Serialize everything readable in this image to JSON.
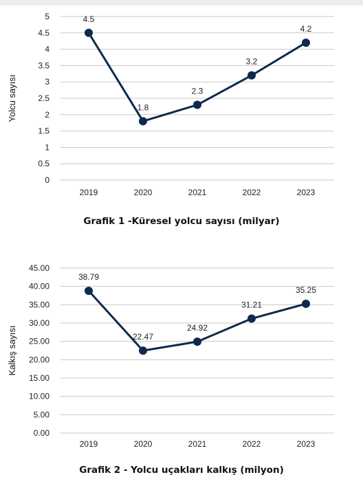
{
  "chart_data": [
    {
      "type": "line",
      "title": "Grafik 1 -Küresel yolcu sayısı (milyar)",
      "xlabel": "",
      "ylabel": "Yolcu sayısı",
      "categories": [
        "2019",
        "2020",
        "2021",
        "2022",
        "2023"
      ],
      "series": [
        {
          "values": [
            4.5,
            1.8,
            2.3,
            3.2,
            4.2
          ]
        }
      ],
      "data_labels": [
        "4.5",
        "1.8",
        "2.3",
        "3.2",
        "4.2"
      ],
      "yticks": [
        "0",
        "0.5",
        "1",
        "1.5",
        "2",
        "2.5",
        "3",
        "3.5",
        "4",
        "4.5",
        "5"
      ],
      "ylim": [
        0,
        5
      ],
      "grid": true,
      "color": "#0d2a4c"
    },
    {
      "type": "line",
      "title": "Grafik 2 - Yolcu uçakları kalkış (milyon)",
      "xlabel": "",
      "ylabel": "Kalkış sayısı",
      "categories": [
        "2019",
        "2020",
        "2021",
        "2022",
        "2023"
      ],
      "series": [
        {
          "values": [
            38.79,
            22.47,
            24.92,
            31.21,
            35.25
          ]
        }
      ],
      "data_labels": [
        "38.79",
        "22.47",
        "24.92",
        "31.21",
        "35.25"
      ],
      "yticks": [
        "0.00",
        "5.00",
        "10.00",
        "15.00",
        "20.00",
        "25.00",
        "30.00",
        "35.00",
        "40.00",
        "45.00"
      ],
      "ylim": [
        0,
        45
      ],
      "grid": true,
      "color": "#0d2a4c"
    }
  ]
}
